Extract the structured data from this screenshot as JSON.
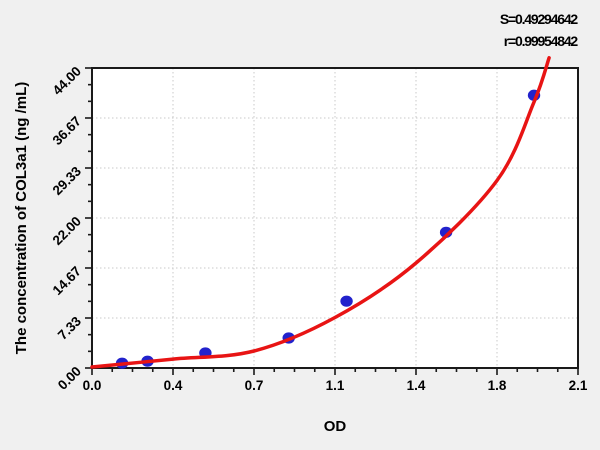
{
  "chart_data": {
    "type": "scatter",
    "title": "",
    "xlabel": "OD",
    "ylabel": "The concentration of COL3a1 (ng /mL)",
    "stats": {
      "s_label": "S=0.49294642",
      "r_label": "r=0.99954842"
    },
    "xlim": [
      0,
      2.1
    ],
    "ylim": [
      0,
      44
    ],
    "x_major_ticks": [
      {
        "value": 0.0,
        "label": "0.0"
      },
      {
        "value": 0.35,
        "label": "0.4"
      },
      {
        "value": 0.7,
        "label": "0.7"
      },
      {
        "value": 1.05,
        "label": "1.1"
      },
      {
        "value": 1.4,
        "label": "1.4"
      },
      {
        "value": 1.75,
        "label": "1.8"
      },
      {
        "value": 2.1,
        "label": "2.1"
      }
    ],
    "x_minors_between": 3,
    "y_major_ticks": [
      {
        "value": 0,
        "label": "0.00"
      },
      {
        "value": 7.333,
        "label": "7.33"
      },
      {
        "value": 14.667,
        "label": "14.67"
      },
      {
        "value": 22,
        "label": "22.00"
      },
      {
        "value": 29.333,
        "label": "29.33"
      },
      {
        "value": 36.667,
        "label": "36.67"
      },
      {
        "value": 44,
        "label": "44.00"
      }
    ],
    "y_minors_between": 2,
    "grid": true,
    "legend": "none",
    "points": [
      {
        "od": 0.13,
        "conc": 0.7
      },
      {
        "od": 0.24,
        "conc": 1.0
      },
      {
        "od": 0.49,
        "conc": 2.2
      },
      {
        "od": 0.85,
        "conc": 4.4
      },
      {
        "od": 1.1,
        "conc": 9.8
      },
      {
        "od": 1.53,
        "conc": 19.9
      },
      {
        "od": 1.91,
        "conc": 40.0
      }
    ],
    "fit_curve": [
      {
        "od": 0.0,
        "conc": 0.15
      },
      {
        "od": 0.35,
        "conc": 1.3
      },
      {
        "od": 0.7,
        "conc": 2.5
      },
      {
        "od": 1.05,
        "conc": 7.4
      },
      {
        "od": 1.4,
        "conc": 15.4
      },
      {
        "od": 1.75,
        "conc": 27.5
      },
      {
        "od": 1.91,
        "conc": 39.0
      },
      {
        "od": 1.975,
        "conc": 45.5
      }
    ],
    "colors": {
      "curve": "#e81414",
      "points": "#2222cc",
      "grid": "#c9c9c9",
      "axis": "#1a1a1a",
      "plot_bg": "#ffffff",
      "page_bg": "#f0f0f0",
      "text": "#000000"
    }
  }
}
